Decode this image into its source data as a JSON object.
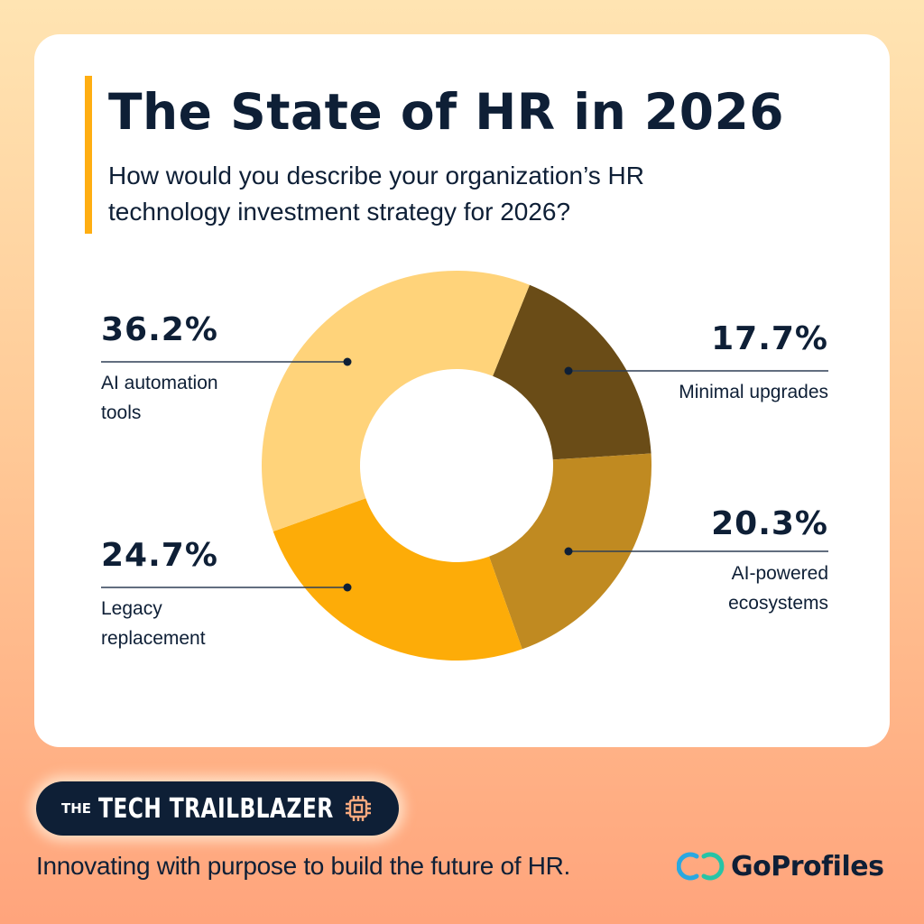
{
  "header": {
    "title": "The State of HR in 2026",
    "subtitle": "How would you describe your organization’s HR technology investment strategy for 2026?"
  },
  "chart_data": {
    "type": "pie",
    "variant": "donut",
    "title": "The State of HR in 2026",
    "subtitle": "How would you describe your organization’s HR technology investment strategy for 2026?",
    "categories": [
      "Minimal upgrades",
      "AI-powered ecosystems",
      "Legacy replacement",
      "AI automation tools"
    ],
    "values": [
      17.7,
      20.3,
      24.7,
      36.2
    ],
    "unit": "%",
    "colors": [
      "#6A4C17",
      "#C08A21",
      "#FDAC08",
      "#FFD37A"
    ],
    "labels": [
      {
        "pct": "17.7%",
        "desc": "Minimal upgrades",
        "position": "right-top"
      },
      {
        "pct": "20.3%",
        "desc": "AI-powered ecosystems",
        "position": "right-bottom"
      },
      {
        "pct": "24.7%",
        "desc": "Legacy replacement",
        "position": "left-bottom"
      },
      {
        "pct": "36.2%",
        "desc": "AI automation tools",
        "position": "left-top"
      }
    ],
    "legend": "leader-line callouts",
    "grid": false
  },
  "callouts": {
    "ai_automation": {
      "pct": "36.2%",
      "line1": "AI automation",
      "line2": "tools"
    },
    "minimal": {
      "pct": "17.7%",
      "line1": "Minimal upgrades"
    },
    "ai_powered": {
      "pct": "20.3%",
      "line1": "AI-powered",
      "line2": "ecosystems"
    },
    "legacy": {
      "pct": "24.7%",
      "line1": "Legacy",
      "line2": "replacement"
    }
  },
  "footer": {
    "badge_prefix": "THE",
    "badge_name": "TECH TRAILBLAZER",
    "badge_icon": "chip-icon",
    "tagline": "Innovating with purpose to build the future of HR.",
    "brand": "GoProfiles",
    "brand_icon": "goprofiles-logo-icon"
  },
  "colors": {
    "text": "#0E1F36",
    "accent": "#FFAE12",
    "chip": "#F8A97E",
    "logo_blue": "#2AA8E0",
    "logo_teal": "#26C4A6"
  }
}
